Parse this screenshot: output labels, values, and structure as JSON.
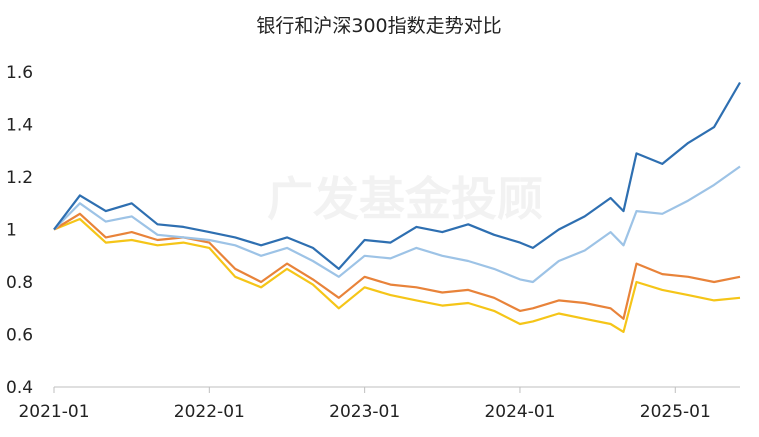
{
  "chart_data": {
    "type": "line",
    "title": "银行和沪深300指数走势对比",
    "watermark": "广发基金投顾",
    "xlabel": "",
    "ylabel": "",
    "x_ticks": [
      "2021-01",
      "2022-01",
      "2023-01",
      "2024-01",
      "2025-01"
    ],
    "y_ticks": [
      "0.4",
      "0.6",
      "0.8",
      "1",
      "1.2",
      "1.4",
      "1.6"
    ],
    "ylim": [
      0.4,
      1.6
    ],
    "xlim": [
      "2021-01",
      "2025-06"
    ],
    "grid": false,
    "legend": "none",
    "series": [
      {
        "color": "#2e6fb1",
        "x": [
          "2021-01",
          "2021-03",
          "2021-05",
          "2021-07",
          "2021-09",
          "2021-11",
          "2022-01",
          "2022-03",
          "2022-05",
          "2022-07",
          "2022-09",
          "2022-11",
          "2023-01",
          "2023-03",
          "2023-05",
          "2023-07",
          "2023-09",
          "2023-11",
          "2024-01",
          "2024-02",
          "2024-04",
          "2024-06",
          "2024-08",
          "2024-09",
          "2024-10",
          "2024-12",
          "2025-02",
          "2025-04",
          "2025-06"
        ],
        "values": [
          1.0,
          1.13,
          1.07,
          1.1,
          1.02,
          1.01,
          0.99,
          0.97,
          0.94,
          0.97,
          0.93,
          0.85,
          0.96,
          0.95,
          1.01,
          0.99,
          1.02,
          0.98,
          0.95,
          0.93,
          1.0,
          1.05,
          1.12,
          1.07,
          1.29,
          1.25,
          1.33,
          1.39,
          1.56
        ]
      },
      {
        "color": "#9dc3e6",
        "x": [
          "2021-01",
          "2021-03",
          "2021-05",
          "2021-07",
          "2021-09",
          "2021-11",
          "2022-01",
          "2022-03",
          "2022-05",
          "2022-07",
          "2022-09",
          "2022-11",
          "2023-01",
          "2023-03",
          "2023-05",
          "2023-07",
          "2023-09",
          "2023-11",
          "2024-01",
          "2024-02",
          "2024-04",
          "2024-06",
          "2024-08",
          "2024-09",
          "2024-10",
          "2024-12",
          "2025-02",
          "2025-04",
          "2025-06"
        ],
        "values": [
          1.0,
          1.1,
          1.03,
          1.05,
          0.98,
          0.97,
          0.96,
          0.94,
          0.9,
          0.93,
          0.88,
          0.82,
          0.9,
          0.89,
          0.93,
          0.9,
          0.88,
          0.85,
          0.81,
          0.8,
          0.88,
          0.92,
          0.99,
          0.94,
          1.07,
          1.06,
          1.11,
          1.17,
          1.24
        ]
      },
      {
        "color": "#e8833a",
        "x": [
          "2021-01",
          "2021-03",
          "2021-05",
          "2021-07",
          "2021-09",
          "2021-11",
          "2022-01",
          "2022-03",
          "2022-05",
          "2022-07",
          "2022-09",
          "2022-11",
          "2023-01",
          "2023-03",
          "2023-05",
          "2023-07",
          "2023-09",
          "2023-11",
          "2024-01",
          "2024-02",
          "2024-04",
          "2024-06",
          "2024-08",
          "2024-09",
          "2024-10",
          "2024-12",
          "2025-02",
          "2025-04",
          "2025-06"
        ],
        "values": [
          1.0,
          1.06,
          0.97,
          0.99,
          0.96,
          0.97,
          0.95,
          0.85,
          0.8,
          0.87,
          0.81,
          0.74,
          0.82,
          0.79,
          0.78,
          0.76,
          0.77,
          0.74,
          0.69,
          0.7,
          0.73,
          0.72,
          0.7,
          0.66,
          0.87,
          0.83,
          0.82,
          0.8,
          0.82
        ]
      },
      {
        "color": "#f5c518",
        "x": [
          "2021-01",
          "2021-03",
          "2021-05",
          "2021-07",
          "2021-09",
          "2021-11",
          "2022-01",
          "2022-03",
          "2022-05",
          "2022-07",
          "2022-09",
          "2022-11",
          "2023-01",
          "2023-03",
          "2023-05",
          "2023-07",
          "2023-09",
          "2023-11",
          "2024-01",
          "2024-02",
          "2024-04",
          "2024-06",
          "2024-08",
          "2024-09",
          "2024-10",
          "2024-12",
          "2025-02",
          "2025-04",
          "2025-06"
        ],
        "values": [
          1.0,
          1.04,
          0.95,
          0.96,
          0.94,
          0.95,
          0.93,
          0.82,
          0.78,
          0.85,
          0.79,
          0.7,
          0.78,
          0.75,
          0.73,
          0.71,
          0.72,
          0.69,
          0.64,
          0.65,
          0.68,
          0.66,
          0.64,
          0.61,
          0.8,
          0.77,
          0.75,
          0.73,
          0.74
        ]
      }
    ]
  }
}
